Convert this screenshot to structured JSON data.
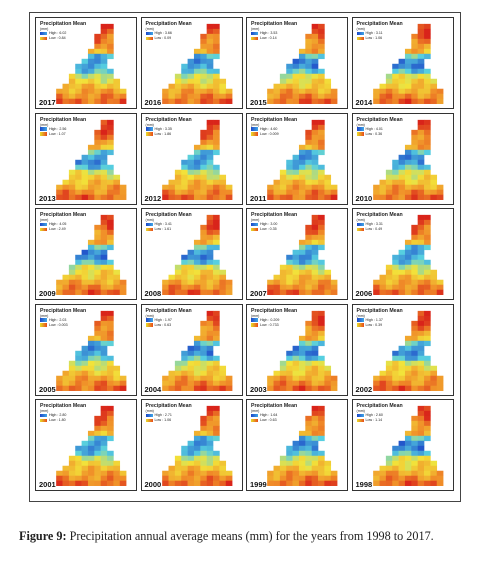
{
  "figure": {
    "panel_title": "Precipitation Mean",
    "unit": "(mm)",
    "high_label": "High",
    "low_label": "Low",
    "panels": [
      {
        "year": "2017",
        "high": "6.02",
        "low": "0.84"
      },
      {
        "year": "2016",
        "high": "3.66",
        "low": "0.09"
      },
      {
        "year": "2015",
        "high": "3.53",
        "low": "0.14"
      },
      {
        "year": "2014",
        "high": "3.11",
        "low": "1.06"
      },
      {
        "year": "2013",
        "high": "2.56",
        "low": "1.07"
      },
      {
        "year": "2012",
        "high": "3.35",
        "low": "1.86"
      },
      {
        "year": "2011",
        "high": "4.60",
        "low": "0.009"
      },
      {
        "year": "2010",
        "high": "4.01",
        "low": "0.36"
      },
      {
        "year": "2009",
        "high": "4.05",
        "low": "2.49"
      },
      {
        "year": "2008",
        "high": "3.41",
        "low": "1.61"
      },
      {
        "year": "2007",
        "high": "3.00",
        "low": "0.35"
      },
      {
        "year": "2006",
        "high": "3.31",
        "low": "0.49"
      },
      {
        "year": "2005",
        "high": "2.03",
        "low": "0.003"
      },
      {
        "year": "2004",
        "high": "1.97",
        "low": "0.63"
      },
      {
        "year": "2003",
        "high": "0.209",
        "low": "0.733"
      },
      {
        "year": "2002",
        "high": "1.37",
        "low": "0.39"
      },
      {
        "year": "2001",
        "high": "2.80",
        "low": "1.80"
      },
      {
        "year": "2000",
        "high": "2.71",
        "low": "1.06"
      },
      {
        "year": "1999",
        "high": "1.64",
        "low": "0.63"
      },
      {
        "year": "1998",
        "high": "2.60",
        "low": "1.14"
      }
    ]
  },
  "caption": {
    "label": "Figure 9:",
    "text": " Precipitation annual average means (mm) for the years from 1998 to 2017."
  },
  "colors": {
    "wet": "#1c46c8",
    "mid": "#56cfe0",
    "dry_low": "#f2e33a",
    "dry_high": "#d9241a"
  }
}
